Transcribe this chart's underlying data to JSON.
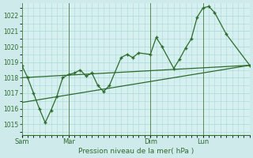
{
  "background_color": "#ceeaea",
  "plot_bg_color": "#d6f0f0",
  "grid_color": "#a8d8d8",
  "line_color": "#2d6b2d",
  "marker_color": "#2d6b2d",
  "title": "Pression niveau de la mer( hPa )",
  "ylim": [
    1014.3,
    1022.8
  ],
  "yticks": [
    1015,
    1016,
    1017,
    1018,
    1019,
    1020,
    1021,
    1022
  ],
  "day_labels": [
    "Sam",
    "Mar",
    "Dim",
    "Lun"
  ],
  "day_positions": [
    0,
    4,
    11,
    15.5
  ],
  "xlim": [
    0,
    19.5
  ],
  "series1_x": [
    0,
    0.5,
    1.0,
    1.5,
    2.0,
    2.5,
    3.0,
    3.5,
    4.0,
    4.5,
    5.0,
    5.5,
    6.0,
    6.5,
    7.0,
    7.5,
    8.5,
    9.0,
    9.5,
    10.0,
    11.0,
    11.5,
    12.0,
    13.0,
    13.5,
    14.0,
    14.5,
    15.0,
    15.5,
    16.0,
    16.5,
    17.5,
    19.5
  ],
  "series1_y": [
    1018.8,
    1018.0,
    1017.0,
    1016.0,
    1015.1,
    1015.9,
    1016.8,
    1018.0,
    1018.2,
    1018.3,
    1018.5,
    1018.1,
    1018.3,
    1017.5,
    1017.1,
    1017.5,
    1019.3,
    1019.5,
    1019.3,
    1019.6,
    1019.5,
    1020.6,
    1020.0,
    1018.6,
    1019.2,
    1019.9,
    1020.5,
    1021.9,
    1022.5,
    1022.6,
    1022.2,
    1020.8,
    1018.8
  ],
  "series2_x": [
    0,
    19.5
  ],
  "series2_y": [
    1018.0,
    1018.8
  ],
  "series3_x": [
    0,
    19.5
  ],
  "series3_y": [
    1016.4,
    1018.8
  ],
  "vline_color": "#5a8a5a",
  "title_color": "#2d6b2d",
  "tick_color": "#2d6b2d"
}
